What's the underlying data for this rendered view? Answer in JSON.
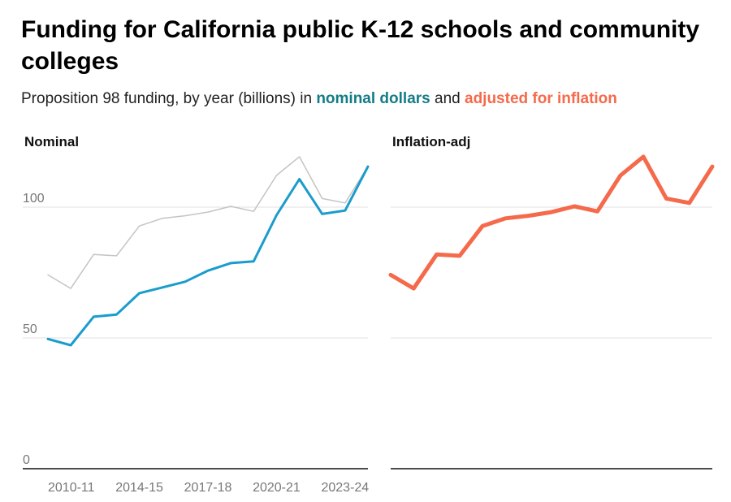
{
  "title_line1": "Funding for California public K-12 schools and community",
  "title_line2": "colleges",
  "subtitle": {
    "prefix": "Proposition 98 funding, by year (billions) in ",
    "nominal": "nominal dollars",
    "middle": " and ",
    "adjusted": "adjusted for inflation"
  },
  "colors": {
    "nominal_text": "#147c86",
    "nominal_line": "#1a9ccc",
    "adjusted": "#f46a4b",
    "context_line": "#c4c4c4"
  },
  "chart_data": [
    {
      "type": "line",
      "panel_title": "Nominal",
      "x": [
        "2010-11",
        "2011-12",
        "2012-13",
        "2013-14",
        "2014-15",
        "2015-16",
        "2016-17",
        "2017-18",
        "2018-19",
        "2019-20",
        "2020-21",
        "2021-22",
        "2022-23",
        "2023-24",
        "2024-25"
      ],
      "x_tick_labels": [
        "2010-11",
        "2014-15",
        "2017-18",
        "2020-21",
        "2023-24"
      ],
      "y_ticks": [
        0,
        50,
        100
      ],
      "ylim": [
        0,
        120
      ],
      "grid": true,
      "series": [
        {
          "role": "context",
          "color": "#c4c4c4",
          "values": [
            74.1,
            68.9,
            81.9,
            81.4,
            92.8,
            95.7,
            96.7,
            98.1,
            100.3,
            98.4,
            112.1,
            119.3,
            103.3,
            101.6,
            115.5
          ]
        },
        {
          "role": "nominal",
          "color": "#1a9ccc",
          "values": [
            49.6,
            47.2,
            58.1,
            58.9,
            67.1,
            69.3,
            71.5,
            75.7,
            78.6,
            79.3,
            96.9,
            110.7,
            97.4,
            98.7,
            115.5
          ]
        }
      ]
    },
    {
      "type": "line",
      "panel_title": "Inflation-adj",
      "x": [
        "2010-11",
        "2011-12",
        "2012-13",
        "2013-14",
        "2014-15",
        "2015-16",
        "2016-17",
        "2017-18",
        "2018-19",
        "2019-20",
        "2020-21",
        "2021-22",
        "2022-23",
        "2023-24",
        "2024-25"
      ],
      "ylim": [
        0,
        120
      ],
      "grid": true,
      "series": [
        {
          "role": "adjusted",
          "color": "#f46a4b",
          "values": [
            74.1,
            68.9,
            81.9,
            81.4,
            92.8,
            95.7,
            96.7,
            98.1,
            100.3,
            98.4,
            112.1,
            119.3,
            103.3,
            101.6,
            115.5
          ]
        }
      ]
    }
  ]
}
